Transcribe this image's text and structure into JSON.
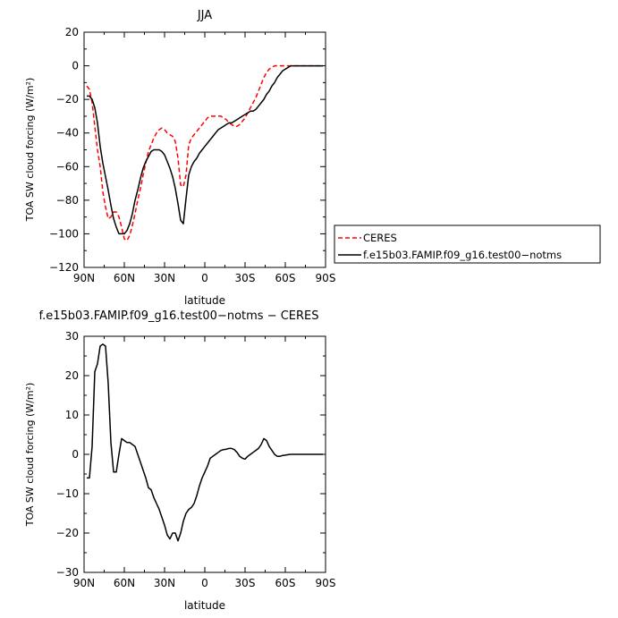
{
  "chart_data": [
    {
      "type": "line",
      "title": "JJA",
      "xlabel": "latitude",
      "ylabel": "TOA SW cloud forcing (W/m²)",
      "xlim": [
        90,
        -90
      ],
      "ylim": [
        -120,
        20
      ],
      "xticks": [
        90,
        60,
        30,
        0,
        -30,
        -60,
        -90
      ],
      "xtick_labels": [
        "90N",
        "60N",
        "30N",
        "0",
        "30S",
        "60S",
        "90S"
      ],
      "yticks": [
        20,
        0,
        -20,
        -40,
        -60,
        -80,
        -100,
        -120
      ],
      "ytick_labels": [
        "20",
        "0",
        "−20",
        "−40",
        "−60",
        "−80",
        "−100",
        "−120"
      ],
      "legend_position": "right",
      "series": [
        {
          "name": "CERES",
          "color": "#ff0000",
          "dash": "dashed",
          "x": [
            88,
            86,
            84,
            82,
            80,
            78,
            76,
            74,
            72,
            70,
            68,
            66,
            64,
            62,
            60,
            58,
            56,
            54,
            52,
            50,
            48,
            46,
            44,
            42,
            40,
            38,
            36,
            34,
            32,
            30,
            28,
            26,
            24,
            22,
            20,
            18,
            16,
            14,
            12,
            10,
            8,
            6,
            4,
            2,
            0,
            -2,
            -4,
            -6,
            -8,
            -10,
            -12,
            -14,
            -16,
            -18,
            -20,
            -22,
            -24,
            -26,
            -28,
            -30,
            -32,
            -34,
            -36,
            -38,
            -40,
            -42,
            -44,
            -46,
            -48,
            -50,
            -52,
            -54,
            -56,
            -58,
            -60,
            -62,
            -64,
            -66,
            -68,
            -70,
            -72,
            -74,
            -76,
            -78,
            -80,
            -82,
            -84,
            -86,
            -88
          ],
          "y": [
            -12,
            -14,
            -22,
            -36,
            -50,
            -60,
            -75,
            -84,
            -91,
            -90,
            -87,
            -87,
            -90,
            -96,
            -103,
            -104,
            -101,
            -95,
            -88,
            -80,
            -73,
            -65,
            -58,
            -51,
            -47,
            -43,
            -40,
            -38,
            -37,
            -38,
            -40,
            -41,
            -42,
            -45,
            -55,
            -71,
            -72,
            -65,
            -47,
            -43,
            -41,
            -39,
            -37,
            -35,
            -33,
            -31,
            -30,
            -30,
            -30,
            -30,
            -30,
            -31,
            -32,
            -34,
            -35,
            -36,
            -36,
            -35,
            -33,
            -31,
            -28,
            -25,
            -22,
            -19,
            -15,
            -11,
            -7,
            -4,
            -2,
            -1,
            0,
            0,
            0,
            0,
            0,
            0,
            0,
            0,
            0,
            0,
            0,
            0,
            0,
            0,
            0,
            0,
            0,
            0,
            0
          ]
        },
        {
          "name": "f.e15b03.FAMIP.f09_g16.test00−notms",
          "color": "#000000",
          "dash": "solid",
          "x": [
            88,
            86,
            84,
            82,
            80,
            78,
            76,
            74,
            72,
            70,
            68,
            66,
            64,
            62,
            60,
            58,
            56,
            54,
            52,
            50,
            48,
            46,
            44,
            42,
            40,
            38,
            36,
            34,
            32,
            30,
            28,
            26,
            24,
            22,
            20,
            18,
            16,
            14,
            12,
            10,
            8,
            6,
            4,
            2,
            0,
            -2,
            -4,
            -6,
            -8,
            -10,
            -12,
            -14,
            -16,
            -18,
            -20,
            -22,
            -24,
            -26,
            -28,
            -30,
            -32,
            -34,
            -36,
            -38,
            -40,
            -42,
            -44,
            -46,
            -48,
            -50,
            -52,
            -54,
            -56,
            -58,
            -60,
            -62,
            -64,
            -66,
            -68,
            -70,
            -72,
            -74,
            -76,
            -78,
            -80,
            -82,
            -84,
            -86,
            -88
          ],
          "y": [
            -18,
            -18,
            -20,
            -25,
            -34,
            -48,
            -58,
            -66,
            -74,
            -83,
            -91,
            -96,
            -100,
            -100,
            -100,
            -98,
            -94,
            -88,
            -80,
            -74,
            -67,
            -61,
            -57,
            -54,
            -51,
            -50,
            -50,
            -50,
            -51,
            -53,
            -57,
            -61,
            -66,
            -73,
            -82,
            -92,
            -94,
            -79,
            -65,
            -60,
            -57,
            -55,
            -52,
            -50,
            -48,
            -46,
            -44,
            -42,
            -40,
            -38,
            -37,
            -36,
            -35,
            -34,
            -34,
            -33,
            -32,
            -31,
            -30,
            -29,
            -28,
            -27,
            -27,
            -26,
            -24,
            -22,
            -20,
            -17,
            -15,
            -12,
            -10,
            -7,
            -5,
            -3,
            -2,
            -1,
            0,
            0,
            0,
            0,
            0,
            0,
            0,
            0,
            0,
            0,
            0,
            0,
            0
          ]
        }
      ]
    },
    {
      "type": "line",
      "title": "f.e15b03.FAMIP.f09_g16.test00−notms − CERES",
      "xlabel": "latitude",
      "ylabel": "TOA SW cloud forcing (W/m²)",
      "xlim": [
        90,
        -90
      ],
      "ylim": [
        -30,
        30
      ],
      "xticks": [
        90,
        60,
        30,
        0,
        -30,
        -60,
        -90
      ],
      "xtick_labels": [
        "90N",
        "60N",
        "30N",
        "0",
        "30S",
        "60S",
        "90S"
      ],
      "yticks": [
        30,
        20,
        10,
        0,
        -10,
        -20,
        -30
      ],
      "ytick_labels": [
        "30",
        "20",
        "10",
        "0",
        "−10",
        "−20",
        "−30"
      ],
      "series": [
        {
          "color": "#000000",
          "x": [
            88,
            86,
            84,
            82,
            80,
            78,
            76,
            74,
            72,
            70,
            68,
            66,
            64,
            62,
            60,
            58,
            56,
            54,
            52,
            50,
            48,
            46,
            44,
            42,
            40,
            38,
            36,
            34,
            32,
            30,
            28,
            26,
            24,
            22,
            20,
            18,
            16,
            14,
            12,
            10,
            8,
            6,
            4,
            2,
            0,
            -2,
            -4,
            -6,
            -8,
            -10,
            -12,
            -14,
            -16,
            -18,
            -20,
            -22,
            -24,
            -26,
            -28,
            -30,
            -32,
            -34,
            -36,
            -38,
            -40,
            -42,
            -44,
            -46,
            -48,
            -50,
            -52,
            -54,
            -56,
            -58,
            -60,
            -62,
            -64,
            -66,
            -68,
            -70,
            -72,
            -74,
            -76,
            -78,
            -80,
            -82,
            -84,
            -86,
            -88
          ],
          "y": [
            -6,
            -6,
            2,
            21,
            23,
            27.5,
            28,
            27.5,
            18,
            3,
            -4.5,
            -4.5,
            0,
            4,
            3.5,
            3,
            3,
            2.5,
            2,
            0,
            -2,
            -4,
            -6,
            -8.5,
            -9,
            -11,
            -12.5,
            -14,
            -16,
            -18,
            -20.5,
            -21.5,
            -20,
            -20,
            -22,
            -20,
            -17,
            -15,
            -14,
            -13.5,
            -12.5,
            -10.5,
            -8,
            -6,
            -4.5,
            -3,
            -1,
            -0.5,
            0,
            0.5,
            1,
            1.2,
            1.3,
            1.5,
            1.5,
            1.2,
            0.5,
            -0.5,
            -1,
            -1.2,
            -0.5,
            0,
            0.5,
            1,
            1.5,
            2.5,
            4,
            3.5,
            2,
            1,
            0,
            -0.5,
            -0.5,
            -0.3,
            -0.2,
            -0.1,
            0,
            0,
            0,
            0,
            0,
            0,
            0,
            0,
            0,
            0,
            0,
            0,
            0
          ]
        }
      ]
    }
  ]
}
